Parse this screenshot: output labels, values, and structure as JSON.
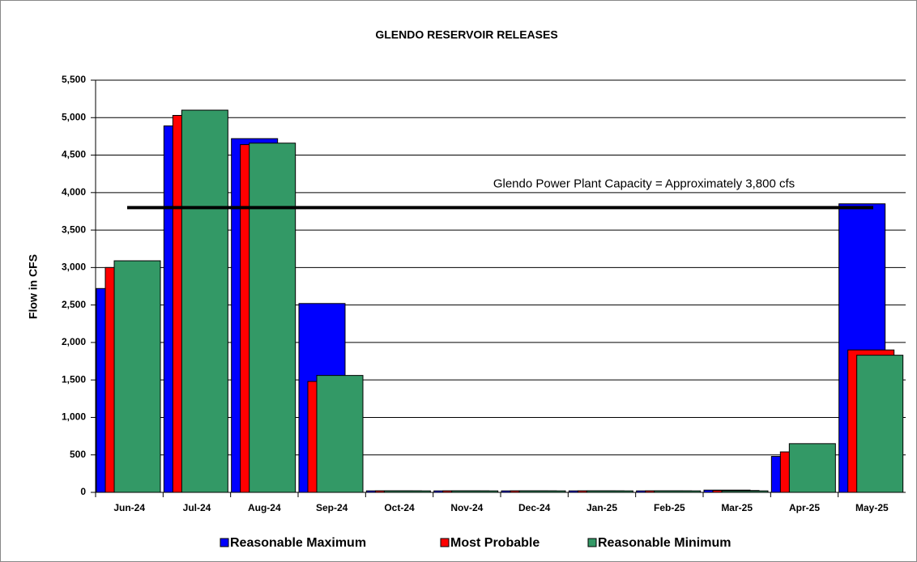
{
  "chart_data": {
    "type": "bar",
    "title": "GLENDO RESERVOIR RELEASES",
    "y_label": "Flow in CFS",
    "categories": [
      "Jun-24",
      "Jul-24",
      "Aug-24",
      "Sep-24",
      "Oct-24",
      "Nov-24",
      "Dec-24",
      "Jan-25",
      "Feb-25",
      "Mar-25",
      "Apr-25",
      "May-25"
    ],
    "series": [
      {
        "name": "Reasonable Maximum",
        "color": "#0000ff",
        "values": [
          2720,
          4890,
          4720,
          2520,
          20,
          20,
          20,
          20,
          20,
          30,
          480,
          3850
        ]
      },
      {
        "name": "Most Probable",
        "color": "#ff0000",
        "values": [
          3000,
          5030,
          4640,
          1480,
          20,
          20,
          20,
          20,
          20,
          25,
          540,
          1900
        ]
      },
      {
        "name": "Reasonable Minimum",
        "color": "#339966",
        "values": [
          3090,
          5100,
          4660,
          1560,
          20,
          20,
          20,
          20,
          20,
          20,
          650,
          1830
        ]
      }
    ],
    "ylim": [
      0,
      5500
    ],
    "yticks": [
      0,
      500,
      {
        "value": 1000,
        "label": "1,000"
      },
      {
        "value": 1500,
        "label": "1,500"
      },
      {
        "value": 2000,
        "label": "2,000"
      },
      {
        "value": 2500,
        "label": "2,500"
      },
      {
        "value": 3000,
        "label": "3,000"
      },
      {
        "value": 3500,
        "label": "3,500"
      },
      {
        "value": 4000,
        "label": "4,000"
      },
      {
        "value": 4500,
        "label": "4,500"
      },
      {
        "value": 5000,
        "label": "5,000"
      },
      {
        "value": 5500,
        "label": "5,500"
      }
    ],
    "grid": true,
    "reference_line": {
      "value": 3800,
      "label": "Glendo Power Plant Capacity = Approximately 3,800 cfs"
    },
    "legend": "bottom"
  }
}
